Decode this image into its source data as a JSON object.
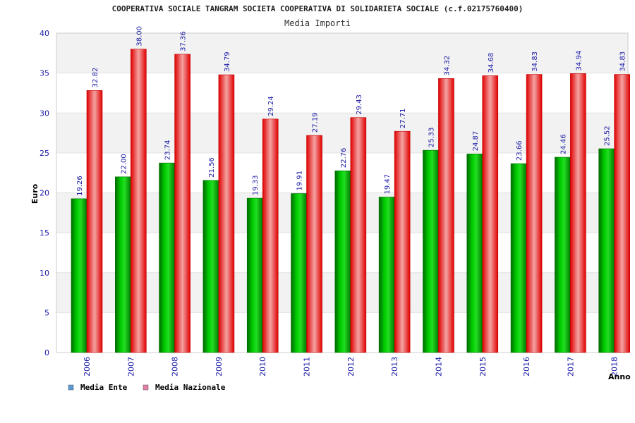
{
  "chart_data": {
    "type": "bar",
    "title": "COOPERATIVA SOCIALE TANGRAM SOCIETA COOPERATIVA DI SOLIDARIETA SOCIALE (c.f.02175760400)",
    "subtitle": "Media Importi",
    "xlabel": "Anno",
    "ylabel": "Euro",
    "ylim": [
      0,
      40
    ],
    "yticks": [
      0,
      5,
      10,
      15,
      20,
      25,
      30,
      35,
      40
    ],
    "grid": true,
    "legend_position": "bottom-left",
    "categories": [
      "2006",
      "2007",
      "2008",
      "2009",
      "2010",
      "2011",
      "2012",
      "2013",
      "2014",
      "2015",
      "2016",
      "2017",
      "2018"
    ],
    "series": [
      {
        "name": "Media Ente",
        "color": "#00b400",
        "legend_color": "#5b9bd5",
        "values": [
          19.26,
          22.0,
          23.74,
          21.56,
          19.33,
          19.91,
          22.76,
          19.47,
          25.33,
          24.87,
          23.66,
          24.46,
          25.52
        ],
        "labels": [
          "19.26",
          "22.00",
          "23.74",
          "21.56",
          "19.33",
          "19.91",
          "22.76",
          "19.47",
          "25.33",
          "24.87",
          "23.66",
          "24.46",
          "25.52"
        ]
      },
      {
        "name": "Media Nazionale",
        "color": "#ee1111",
        "legend_color": "#e37fa8",
        "values": [
          32.82,
          38.0,
          37.36,
          34.79,
          29.24,
          27.19,
          29.43,
          27.71,
          34.32,
          34.68,
          34.83,
          34.94,
          34.83
        ],
        "labels": [
          "32.82",
          "38.00",
          "37.36",
          "34.79",
          "29.24",
          "27.19",
          "29.43",
          "27.71",
          "34.32",
          "34.68",
          "34.83",
          "34.94",
          "34.83"
        ]
      }
    ]
  }
}
